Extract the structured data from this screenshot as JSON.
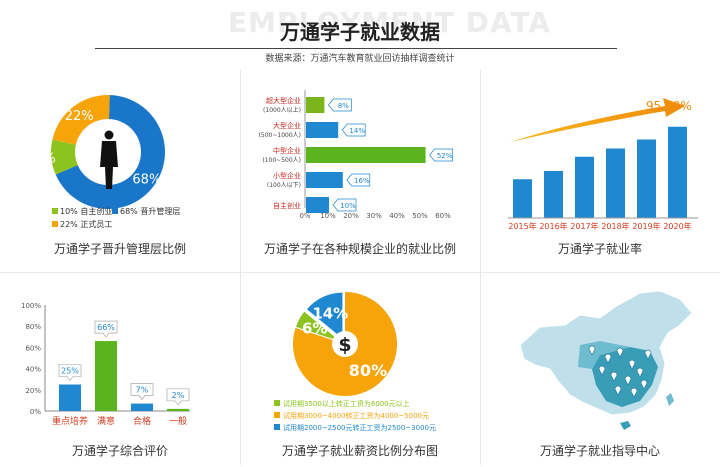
{
  "header": {
    "ghost": "EMPLOYMENT DATA",
    "title": "万通学子就业数据",
    "source": "数据来源：万通汽车教育就业回访抽样调查统计"
  },
  "captions": {
    "c1": "万通学子晋升管理层比例",
    "c2": "万通学子在各种规模企业的就业比例",
    "c3": "万通学子就业率",
    "c4": "万通学子综合评价",
    "c5": "万通学子就业薪资比例分布图",
    "c6": "万通学子就业指导中心"
  },
  "colors": {
    "orange": "#f7a40b",
    "blue": "#1976c8",
    "green": "#8cc31e",
    "barBlue": "#1f88d0",
    "barGreen": "#5bb31e",
    "red": "#d43c1e"
  },
  "chart_data": [
    {
      "type": "pie",
      "labels": [
        "10% 自主创业",
        "68% 晋升管理层",
        "22% 正式员工"
      ],
      "values": [
        10,
        68,
        22
      ],
      "slice_labels": [
        "10%",
        "68%",
        "22%"
      ],
      "colors": [
        "#8cc31e",
        "#1976c8",
        "#f7a40b"
      ],
      "style": "donut"
    },
    {
      "type": "bar",
      "orientation": "horizontal",
      "categories": [
        [
          "超大型企业",
          "(1000人以上)"
        ],
        [
          "大型企业",
          "(500~1000人)"
        ],
        [
          "中型企业",
          "(100~500人)"
        ],
        [
          "小型企业",
          "(100人以下)"
        ],
        [
          "自主创业"
        ]
      ],
      "values": [
        8,
        14,
        52,
        16,
        10
      ],
      "value_labels": [
        "8%",
        "14%",
        "52%",
        "16%",
        "10%"
      ],
      "colors": [
        "#7bb51e",
        "#1f88d0",
        "#5bb31e",
        "#1f88d0",
        "#1f88d0"
      ],
      "xticks": [
        "0%",
        "10%",
        "20%",
        "30%",
        "40%",
        "50%",
        "60%"
      ],
      "xlim": [
        0,
        60
      ]
    },
    {
      "type": "bar",
      "categories": [
        "2015年",
        "2016年",
        "2017年",
        "2018年",
        "2019年",
        "2020年"
      ],
      "values": [
        88.5,
        89.6,
        91.5,
        92.6,
        93.8,
        95.5
      ],
      "annotation": "95.50%",
      "ylim": [
        80,
        100
      ]
    },
    {
      "type": "bar",
      "categories": [
        "重点培养",
        "满意",
        "合格",
        "一般"
      ],
      "values": [
        25,
        66,
        7,
        2
      ],
      "value_labels": [
        "25%",
        "66%",
        "7%",
        "2%"
      ],
      "colors": [
        "#1f88d0",
        "#5bb31e",
        "#1f88d0",
        "#5bb31e"
      ],
      "yticks": [
        "0%",
        "20%",
        "40%",
        "60%",
        "80%",
        "100%"
      ],
      "ylim": [
        0,
        100
      ]
    },
    {
      "type": "pie",
      "labels": [
        "试用期3500以上转正工资为6000元以上",
        "试用期3000~4000转正工资为4000~5000元",
        "试用期2000~2500元转正工资为2500~3000元"
      ],
      "values": [
        6,
        80,
        14
      ],
      "slice_labels": [
        "6%",
        "80%",
        "14%"
      ],
      "colors": [
        "#8cc31e",
        "#f7a40b",
        "#1f88d0"
      ],
      "center_symbol": "$"
    }
  ],
  "map": {
    "name": "China map",
    "base_color": "#bfe0ea",
    "dark_color": "#3a9db8"
  }
}
